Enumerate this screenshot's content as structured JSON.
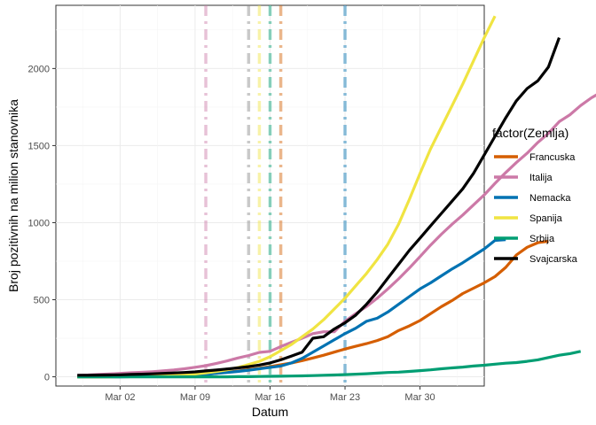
{
  "chart_data": {
    "type": "line",
    "title": "",
    "xlabel": "Datum",
    "ylabel": "Broj pozitivnih na milion stanovnika",
    "x_start": "2020-02-27",
    "x_end": "2020-04-04",
    "xlim": [
      "2020-02-25",
      "2020-04-05"
    ],
    "ylim": [
      -60,
      2410
    ],
    "x_ticks": [
      {
        "date": "2020-03-02",
        "label": "Mar 02"
      },
      {
        "date": "2020-03-09",
        "label": "Mar 09"
      },
      {
        "date": "2020-03-16",
        "label": "Mar 16"
      },
      {
        "date": "2020-03-23",
        "label": "Mar 23"
      },
      {
        "date": "2020-03-30",
        "label": "Mar 30"
      }
    ],
    "y_ticks": [
      0,
      500,
      1000,
      1500,
      2000
    ],
    "grid": true,
    "legend_title": "factor(Zemlja)",
    "legend_position": "right",
    "series": [
      {
        "name": "Francuska",
        "color": "#d55e00",
        "values": [
          0,
          0,
          0,
          1,
          1,
          2,
          3,
          4,
          5,
          7,
          10,
          13,
          17,
          23,
          30,
          37,
          46,
          55,
          66,
          78,
          90,
          105,
          122,
          140,
          160,
          180,
          198,
          215,
          235,
          260,
          300,
          330,
          365,
          410,
          455,
          495,
          540,
          575,
          610,
          650,
          710,
          790,
          840,
          870,
          880
        ]
      },
      {
        "name": "Italija",
        "color": "#cc79a7",
        "values": [
          10,
          12,
          15,
          18,
          22,
          26,
          29,
          33,
          38,
          44,
          52,
          62,
          72,
          87,
          103,
          122,
          138,
          158,
          165,
          196,
          224,
          250,
          280,
          292,
          292,
          360,
          410,
          455,
          510,
          570,
          635,
          705,
          780,
          855,
          925,
          990,
          1050,
          1115,
          1180,
          1255,
          1325,
          1390,
          1450,
          1520,
          1580,
          1655,
          1700,
          1760,
          1810,
          1850,
          1900
        ]
      },
      {
        "name": "Nemacka",
        "color": "#0072b2",
        "values": [
          0,
          0,
          0,
          0,
          0,
          1,
          2,
          3,
          5,
          7,
          9,
          12,
          16,
          22,
          28,
          35,
          43,
          52,
          61,
          70,
          90,
          120,
          160,
          200,
          240,
          280,
          315,
          360,
          380,
          420,
          470,
          520,
          570,
          610,
          655,
          700,
          740,
          785,
          830,
          885,
          890
        ]
      },
      {
        "name": "Spanija",
        "color": "#f0e442",
        "values": [
          0,
          0,
          0,
          0,
          1,
          1,
          2,
          4,
          6,
          9,
          13,
          18,
          25,
          34,
          45,
          60,
          80,
          100,
          130,
          170,
          210,
          260,
          310,
          370,
          440,
          510,
          590,
          670,
          760,
          860,
          990,
          1150,
          1320,
          1480,
          1620,
          1760,
          1900,
          2050,
          2200,
          2340
        ]
      },
      {
        "name": "Srbija",
        "color": "#009e73",
        "values": [
          0,
          0,
          0,
          0,
          0,
          0,
          0,
          0,
          0,
          0,
          0,
          0,
          0,
          0,
          0,
          1,
          1,
          2,
          3,
          4,
          5,
          6,
          8,
          10,
          12,
          14,
          17,
          20,
          24,
          28,
          30,
          35,
          40,
          45,
          52,
          58,
          63,
          70,
          75,
          82,
          88,
          92,
          100,
          110,
          125,
          140,
          150,
          165
        ]
      },
      {
        "name": "Svajcarska",
        "color": "#000000",
        "values": [
          10,
          10,
          11,
          12,
          13,
          15,
          17,
          19,
          22,
          25,
          28,
          32,
          38,
          44,
          51,
          58,
          66,
          76,
          90,
          110,
          135,
          160,
          250,
          260,
          310,
          350,
          400,
          470,
          550,
          640,
          730,
          820,
          900,
          980,
          1060,
          1140,
          1220,
          1320,
          1440,
          1560,
          1680,
          1790,
          1870,
          1920,
          2010,
          2200
        ]
      }
    ],
    "vlines": [
      {
        "date": "2020-03-10",
        "color": "#cc79a7",
        "label": "Italija"
      },
      {
        "date": "2020-03-14",
        "color": "#888888",
        "label": "Svajcarska"
      },
      {
        "date": "2020-03-15",
        "color": "#f0e442",
        "label": "Spanija"
      },
      {
        "date": "2020-03-16",
        "color": "#009e73",
        "label": "Srbija"
      },
      {
        "date": "2020-03-17",
        "color": "#d55e00",
        "label": "Francuska"
      },
      {
        "date": "2020-03-23",
        "color": "#0072b2",
        "label": "Nemacka"
      }
    ]
  }
}
